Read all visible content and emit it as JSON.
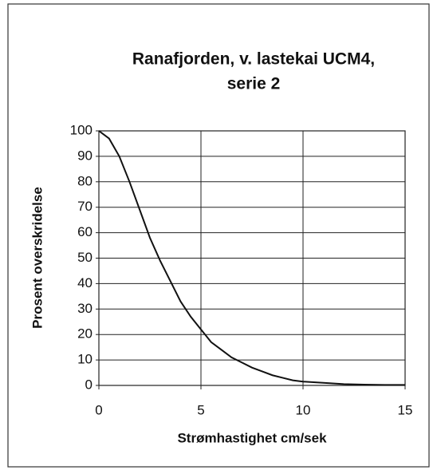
{
  "chart_data": {
    "type": "line",
    "title": [
      "Ranafjorden, v. lastekai  UCM4,",
      "serie 2"
    ],
    "x_label": "Strømhastighet cm/sek",
    "y_label": "Prosent overskridelse",
    "x": [
      0,
      0.5,
      1,
      1.5,
      2,
      2.5,
      3,
      3.5,
      4,
      4.5,
      5,
      5.5,
      6,
      6.5,
      7,
      7.5,
      8,
      8.5,
      9,
      9.5,
      10,
      11,
      12,
      13,
      14,
      15
    ],
    "series": [
      {
        "color": "#111111",
        "values": [
          100,
          97,
          90,
          80,
          69,
          58,
          49,
          41,
          33,
          27,
          22,
          17,
          14,
          11,
          9,
          7,
          5.5,
          4,
          3,
          2,
          1.5,
          1,
          0.5,
          0.3,
          0.2,
          0.2
        ]
      }
    ],
    "xlim": [
      0,
      15
    ],
    "xticks": [
      0,
      5,
      10,
      15
    ],
    "ylim": [
      0,
      100
    ],
    "yticks": [
      0,
      10,
      20,
      30,
      40,
      50,
      60,
      70,
      80,
      90,
      100
    ],
    "grid": true
  }
}
